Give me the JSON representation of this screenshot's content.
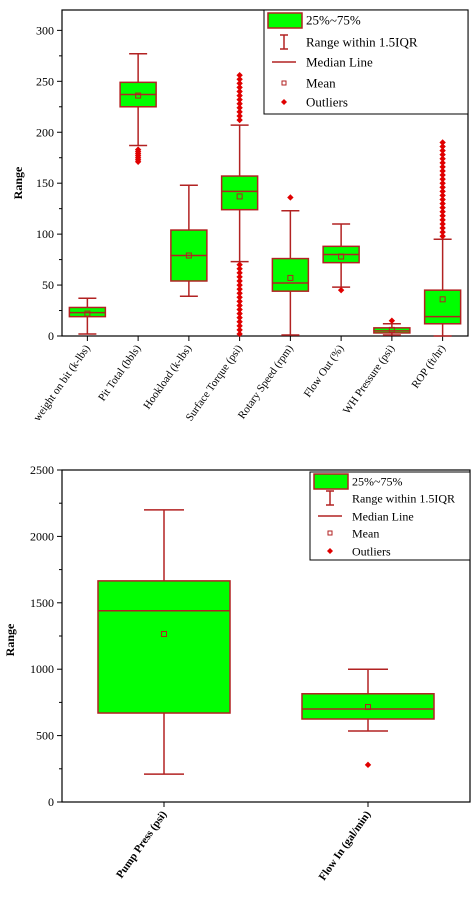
{
  "colors": {
    "box_fill": "#00ff00",
    "box_edge": "#b22222",
    "outlier": "#e00000",
    "axis": "#000000"
  },
  "legend_labels": [
    "25%~75%",
    "Range within 1.5IQR",
    "Median Line",
    "Mean",
    "Outliers"
  ],
  "chart_data": [
    {
      "type": "box",
      "title": "",
      "xlabel": "",
      "ylabel": "Range",
      "ylim": [
        0,
        320
      ],
      "yticks": [
        0,
        50,
        100,
        150,
        200,
        250,
        300
      ],
      "legend_position": "top-right",
      "grid": false,
      "categories": [
        "weight on bit (k-lbs)",
        "Pit Total (bbls)",
        "Hookload (k-lbs)",
        "Surface Torque (psi)",
        "Rotary Speed (rpm)",
        "Flow Out (%)",
        "WH Pressure (psi)",
        "ROP (ft/hr)"
      ],
      "boxes": [
        {
          "whisker_low": 2,
          "q1": 19,
          "median": 23,
          "q3": 28,
          "whisker_high": 37,
          "mean": 22,
          "outliers": []
        },
        {
          "whisker_low": 187,
          "q1": 225,
          "median": 237,
          "q3": 249,
          "whisker_high": 277,
          "mean": 236,
          "outliers": [
            171,
            173,
            175,
            177,
            179,
            181,
            183
          ]
        },
        {
          "whisker_low": 39,
          "q1": 54,
          "median": 79,
          "q3": 104,
          "whisker_high": 148,
          "mean": 79,
          "outliers": []
        },
        {
          "whisker_low": 73,
          "q1": 124,
          "median": 142,
          "q3": 157,
          "whisker_high": 207,
          "mean": 137,
          "outliers": [
            2,
            6,
            10,
            14,
            18,
            22,
            26,
            30,
            34,
            38,
            42,
            46,
            50,
            54,
            58,
            62,
            66,
            70,
            212,
            216,
            220,
            224,
            228,
            232,
            236,
            240,
            244,
            248,
            252,
            256
          ]
        },
        {
          "whisker_low": 1,
          "q1": 44,
          "median": 52,
          "q3": 76,
          "whisker_high": 123,
          "mean": 57,
          "outliers": [
            136
          ]
        },
        {
          "whisker_low": 48,
          "q1": 72,
          "median": 80,
          "q3": 88,
          "whisker_high": 110,
          "mean": 78,
          "outliers": [
            45
          ]
        },
        {
          "whisker_low": 1,
          "q1": 3,
          "median": 5,
          "q3": 8,
          "whisker_high": 12,
          "mean": 6,
          "outliers": [
            15
          ]
        },
        {
          "whisker_low": 0,
          "q1": 12,
          "median": 19,
          "q3": 45,
          "whisker_high": 95,
          "mean": 36,
          "outliers": [
            98,
            102,
            106,
            110,
            114,
            118,
            122,
            126,
            130,
            134,
            138,
            142,
            146,
            150,
            154,
            158,
            162,
            166,
            170,
            174,
            178,
            182,
            186,
            190
          ]
        }
      ]
    },
    {
      "type": "box",
      "title": "",
      "xlabel": "",
      "ylabel": "Range",
      "ylim": [
        0,
        2500
      ],
      "yticks": [
        0,
        500,
        1000,
        1500,
        2000,
        2500
      ],
      "legend_position": "top-right",
      "grid": false,
      "categories": [
        "Pump Press (psi)",
        "Flow In (gal/min)"
      ],
      "boxes": [
        {
          "whisker_low": 210,
          "q1": 670,
          "median": 1440,
          "q3": 1665,
          "whisker_high": 2200,
          "mean": 1265,
          "outliers": []
        },
        {
          "whisker_low": 535,
          "q1": 625,
          "median": 700,
          "q3": 815,
          "whisker_high": 1000,
          "mean": 715,
          "outliers": [
            280
          ]
        }
      ]
    }
  ]
}
